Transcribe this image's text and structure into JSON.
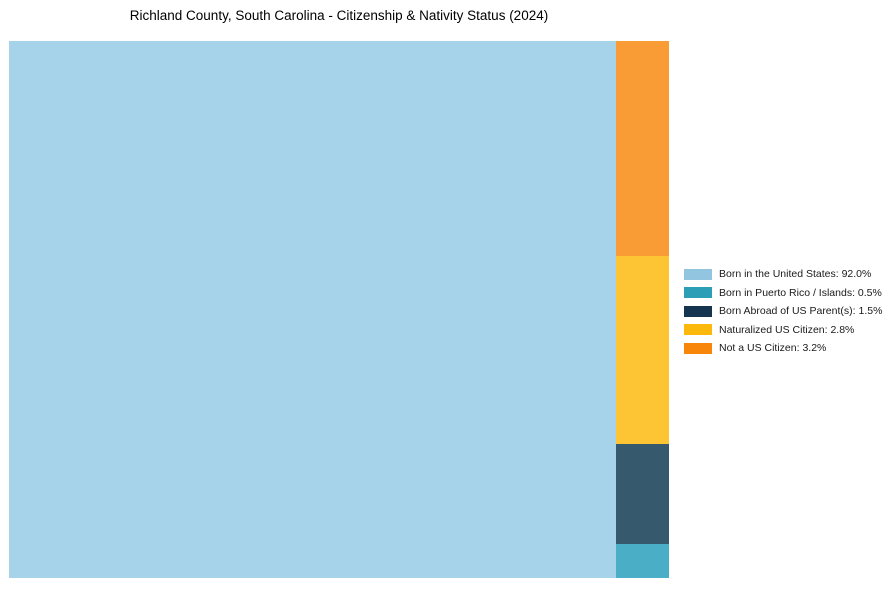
{
  "chart_data": {
    "type": "treemap",
    "title": "Richland County, South Carolina - Citizenship & Nativity Status (2024)",
    "series": [
      {
        "name": "Born in the United States",
        "value": 92.0,
        "label": "Born in the United States: 92.0%",
        "block_color": "#A6D3E9",
        "legend_color": "#92C5E0",
        "slug": "born-in-us"
      },
      {
        "name": "Born in Puerto Rico / Islands",
        "value": 0.5,
        "label": "Born in Puerto Rico / Islands: 0.5%",
        "block_color": "#4AAFC6",
        "legend_color": "#2C9EB6",
        "slug": "puerto-rico-islands"
      },
      {
        "name": "Born Abroad of US Parent(s)",
        "value": 1.5,
        "label": "Born Abroad of US Parent(s): 1.5%",
        "block_color": "#36596D",
        "legend_color": "#14344F",
        "slug": "born-abroad"
      },
      {
        "name": "Naturalized US Citizen",
        "value": 2.8,
        "label": "Naturalized US Citizen: 2.8%",
        "block_color": "#FDC433",
        "legend_color": "#FDB80C",
        "slug": "naturalized-citizen"
      },
      {
        "name": "Not a US Citizen",
        "value": 3.2,
        "label": "Not a US Citizen: 3.2%",
        "block_color": "#F99C35",
        "legend_color": "#F8860B",
        "slug": "not-a-citizen"
      }
    ],
    "layout": {
      "main_block_index": 0,
      "side_column_order_top_to_bottom": [
        4,
        3,
        2,
        1
      ],
      "legend_position": "right-middle",
      "grid": false,
      "axes": false,
      "background_color": "#ffffff"
    }
  }
}
